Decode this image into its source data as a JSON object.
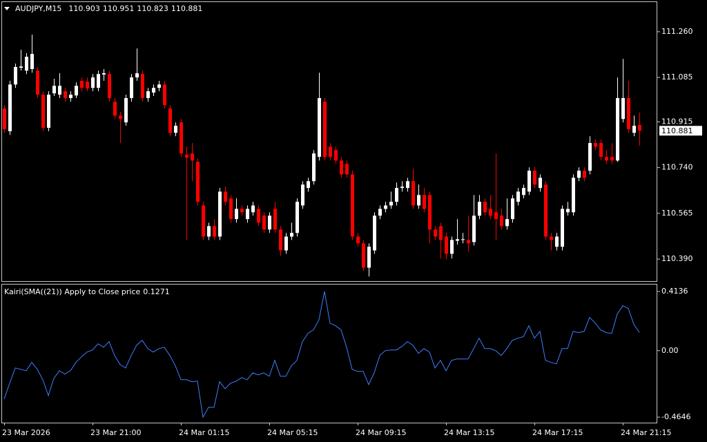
{
  "chart_data": [
    {
      "type": "candlestick",
      "title": "AUDJPY,M15",
      "up_color": "#ffffff",
      "down_color": "#ff0000",
      "categories": [
        "23 Mar 2026",
        null,
        null,
        null,
        null,
        null,
        null,
        null,
        null,
        null,
        null,
        null,
        null,
        null,
        null,
        null,
        "23 Mar 21:00",
        null,
        null,
        null,
        null,
        null,
        null,
        null,
        null,
        null,
        null,
        null,
        null,
        null,
        null,
        null,
        "24 Mar 01:15",
        null,
        null,
        null,
        null,
        null,
        null,
        null,
        null,
        null,
        null,
        null,
        null,
        null,
        null,
        null,
        "24 Mar 05:15",
        null,
        null,
        null,
        null,
        null,
        null,
        null,
        null,
        null,
        null,
        null,
        null,
        null,
        null,
        null,
        "24 Mar 09:15",
        null,
        null,
        null,
        null,
        null,
        null,
        null,
        null,
        null,
        null,
        null,
        null,
        null,
        null,
        null,
        "24 Mar 13:15",
        null,
        null,
        null,
        null,
        null,
        null,
        null,
        null,
        null,
        null,
        null,
        null,
        null,
        null,
        null,
        "24 Mar 17:15",
        null,
        null,
        null,
        null,
        null,
        null,
        null,
        null,
        null,
        null,
        null,
        null,
        null,
        null,
        null,
        "24 Mar 21:15",
        null,
        null,
        null
      ],
      "open": [
        110.966,
        110.879,
        111.058,
        111.122,
        111.111,
        111.117,
        111.111,
        111.019,
        110.892,
        111.024,
        111.019,
        111.032,
        111.006,
        111.016,
        111.072,
        111.069,
        111.045,
        111.045,
        111.096,
        111.098,
        110.992,
        110.939,
        110.913,
        111.006,
        111.085,
        111.098,
        111.006,
        111.027,
        111.045,
        111.058,
        110.966,
        110.873,
        110.913,
        110.789,
        110.794,
        110.762,
        110.595,
        110.476,
        110.516,
        110.476,
        110.648,
        110.622,
        110.543,
        110.582,
        110.543,
        110.569,
        110.582,
        110.556,
        110.503,
        110.582,
        110.503,
        110.423,
        110.476,
        110.49,
        110.595,
        110.662,
        110.688,
        110.781,
        110.992,
        110.82,
        110.807,
        110.767,
        110.754,
        110.714,
        110.476,
        110.45,
        110.357,
        110.423,
        110.556,
        110.582,
        110.595,
        110.609,
        110.662,
        110.662,
        110.688,
        110.595,
        110.635,
        110.635,
        110.503,
        110.516,
        110.476,
        110.41,
        110.46,
        110.463,
        110.463,
        110.455,
        110.556,
        110.609,
        110.582,
        110.569,
        110.556,
        110.516,
        110.543,
        110.609,
        110.635,
        110.648,
        110.728,
        110.662,
        110.675,
        110.476,
        110.437,
        110.437,
        110.569,
        110.569,
        110.701,
        110.728,
        110.728,
        110.834,
        110.834,
        110.781,
        110.781,
        110.767,
        110.926,
        111.006,
        110.873,
        110.903
      ],
      "high": [
        110.979,
        111.072,
        111.138,
        111.191,
        111.178,
        111.249,
        111.125,
        111.032,
        111.032,
        111.08,
        111.101,
        111.045,
        111.032,
        111.066,
        111.085,
        111.085,
        111.098,
        111.111,
        111.117,
        111.111,
        111.006,
        110.953,
        111.019,
        111.098,
        111.196,
        111.111,
        111.045,
        111.058,
        111.072,
        111.072,
        110.979,
        110.913,
        110.926,
        110.82,
        110.834,
        110.775,
        110.609,
        110.529,
        110.543,
        110.662,
        110.667,
        110.635,
        110.622,
        110.595,
        110.595,
        110.609,
        110.595,
        110.569,
        110.569,
        110.609,
        110.516,
        110.49,
        110.529,
        110.622,
        110.688,
        110.701,
        110.807,
        111.103,
        111.006,
        110.834,
        110.82,
        110.781,
        110.767,
        110.728,
        110.49,
        110.463,
        110.45,
        110.569,
        110.595,
        110.609,
        110.648,
        110.683,
        110.688,
        110.701,
        110.736,
        110.675,
        110.662,
        110.648,
        110.516,
        110.529,
        110.49,
        110.476,
        110.543,
        110.49,
        110.556,
        110.635,
        110.635,
        110.622,
        110.635,
        110.794,
        110.582,
        110.622,
        110.635,
        110.662,
        110.675,
        110.741,
        110.741,
        110.714,
        110.688,
        110.49,
        110.49,
        110.595,
        110.609,
        110.714,
        110.741,
        110.741,
        110.86,
        110.847,
        110.847,
        110.807,
        110.834,
        111.085,
        111.156,
        111.072,
        110.939,
        110.951
      ],
      "low": [
        110.873,
        110.865,
        111.045,
        111.111,
        111.098,
        111.103,
        111.006,
        110.879,
        110.879,
        111.014,
        111.006,
        110.992,
        110.992,
        111.006,
        111.032,
        111.032,
        111.032,
        111.032,
        111.072,
        110.992,
        110.926,
        110.834,
        110.9,
        110.992,
        111.072,
        110.992,
        110.992,
        111.014,
        111.032,
        110.966,
        110.86,
        110.86,
        110.781,
        110.463,
        110.688,
        110.595,
        110.463,
        110.463,
        110.463,
        110.463,
        110.595,
        110.529,
        110.529,
        110.556,
        110.529,
        110.556,
        110.516,
        110.49,
        110.49,
        110.49,
        110.402,
        110.41,
        110.463,
        110.476,
        110.582,
        110.648,
        110.675,
        110.767,
        110.767,
        110.767,
        110.754,
        110.701,
        110.701,
        110.463,
        110.437,
        110.344,
        110.323,
        110.41,
        110.543,
        110.569,
        110.582,
        110.595,
        110.648,
        110.648,
        110.582,
        110.582,
        110.569,
        110.45,
        110.463,
        110.392,
        110.389,
        110.392,
        110.445,
        110.45,
        110.418,
        110.442,
        110.543,
        110.556,
        110.543,
        110.463,
        110.503,
        110.503,
        110.529,
        110.595,
        110.622,
        110.635,
        110.662,
        110.648,
        110.463,
        110.423,
        110.423,
        110.423,
        110.556,
        110.556,
        110.688,
        110.688,
        110.714,
        110.807,
        110.767,
        110.754,
        110.754,
        110.762,
        110.913,
        110.873,
        110.86,
        110.823
      ],
      "close": [
        110.887,
        111.058,
        111.125,
        111.127,
        111.164,
        111.175,
        111.019,
        110.892,
        111.019,
        111.053,
        111.053,
        111.006,
        111.019,
        111.053,
        111.045,
        111.043,
        111.085,
        111.098,
        111.101,
        111.006,
        110.939,
        110.926,
        111.006,
        111.085,
        111.101,
        111.006,
        111.032,
        111.045,
        111.058,
        110.979,
        110.873,
        110.9,
        110.794,
        110.778,
        110.767,
        110.609,
        110.476,
        110.516,
        110.476,
        110.648,
        110.609,
        110.543,
        110.582,
        110.569,
        110.582,
        110.595,
        110.529,
        110.503,
        110.556,
        110.503,
        110.423,
        110.476,
        110.49,
        110.609,
        110.675,
        110.688,
        110.794,
        111.006,
        110.781,
        110.781,
        110.767,
        110.714,
        110.714,
        110.476,
        110.45,
        110.357,
        110.437,
        110.556,
        110.582,
        110.595,
        110.609,
        110.662,
        110.667,
        110.688,
        110.595,
        110.635,
        110.582,
        110.503,
        110.476,
        110.463,
        110.41,
        110.463,
        110.466,
        110.466,
        110.45,
        110.556,
        110.609,
        110.569,
        110.556,
        110.543,
        110.516,
        110.543,
        110.622,
        110.648,
        110.662,
        110.728,
        110.675,
        110.701,
        110.476,
        110.463,
        110.476,
        110.582,
        110.582,
        110.701,
        110.728,
        110.701,
        110.834,
        110.82,
        110.781,
        110.767,
        110.767,
        111.006,
        111.006,
        110.887,
        110.9,
        110.881
      ],
      "ylim": [
        110.303,
        111.376
      ],
      "yticks": [
        {
          "value": 111.26,
          "label": "111.260"
        },
        111.085,
        110.915,
        {
          "value": 110.74,
          "label": "110.740"
        },
        110.565,
        {
          "value": 110.39,
          "label": "110.390"
        }
      ]
    },
    {
      "type": "line",
      "title": "Kairi(SMA((21)) Apply to Close price",
      "color": "#3f7fff",
      "values": [
        -0.338,
        -0.227,
        -0.121,
        -0.13,
        -0.14,
        -0.082,
        -0.13,
        -0.203,
        -0.314,
        -0.193,
        -0.14,
        -0.164,
        -0.14,
        -0.082,
        -0.043,
        -0.01,
        0.005,
        0.048,
        0.024,
        0.063,
        -0.034,
        -0.097,
        -0.121,
        -0.034,
        0.039,
        0.072,
        0.014,
        -0.01,
        0.014,
        0.024,
        -0.034,
        -0.106,
        -0.203,
        -0.203,
        -0.217,
        -0.213,
        -0.4646,
        -0.396,
        -0.396,
        -0.217,
        -0.266,
        -0.227,
        -0.213,
        -0.188,
        -0.203,
        -0.155,
        -0.169,
        -0.155,
        -0.179,
        -0.068,
        -0.179,
        -0.179,
        -0.106,
        -0.068,
        0.063,
        0.121,
        0.145,
        0.217,
        0.4136,
        0.193,
        0.174,
        0.145,
        0.024,
        -0.13,
        -0.145,
        -0.145,
        -0.237,
        -0.155,
        -0.034,
        0,
        0.005,
        0.005,
        0.029,
        0.063,
        0.039,
        -0.019,
        0.014,
        -0.01,
        -0.121,
        -0.068,
        -0.14,
        -0.068,
        -0.058,
        -0.058,
        -0.058,
        0.014,
        0.087,
        0.014,
        0.014,
        0,
        -0.034,
        0.014,
        0.072,
        0.087,
        0.097,
        0.174,
        0.087,
        0.135,
        -0.068,
        -0.082,
        -0.092,
        0.014,
        0.014,
        0.135,
        0.126,
        0.135,
        0.232,
        0.193,
        0.145,
        0.126,
        0.121,
        0.256,
        0.314,
        0.295,
        0.184,
        0.1271
      ],
      "ylim": [
        -0.503,
        0.462
      ],
      "yticks": [
        0.4136,
        {
          "value": 0,
          "label": "0.00"
        },
        -0.4646
      ]
    }
  ]
}
